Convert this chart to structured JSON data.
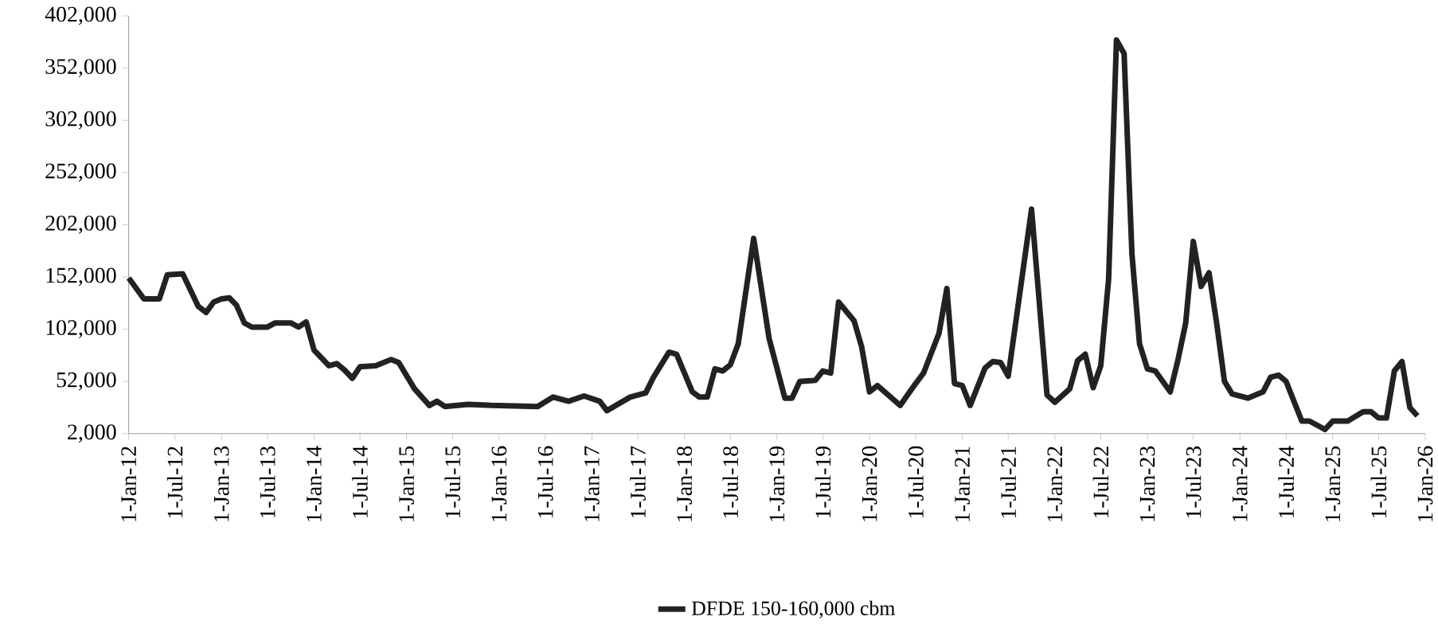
{
  "chart_data": {
    "type": "line",
    "x": [
      "2012-01-01",
      "2012-03-01",
      "2012-05-01",
      "2012-06-01",
      "2012-08-01",
      "2012-10-01",
      "2012-11-01",
      "2012-12-01",
      "2013-01-01",
      "2013-02-01",
      "2013-03-01",
      "2013-04-01",
      "2013-05-01",
      "2013-07-01",
      "2013-08-01",
      "2013-10-01",
      "2013-11-01",
      "2013-12-01",
      "2014-01-01",
      "2014-03-01",
      "2014-04-01",
      "2014-05-01",
      "2014-06-01",
      "2014-07-01",
      "2014-09-01",
      "2014-11-01",
      "2014-12-01",
      "2015-02-01",
      "2015-04-01",
      "2015-05-01",
      "2015-06-01",
      "2015-09-01",
      "2015-12-01",
      "2016-06-01",
      "2016-08-01",
      "2016-10-01",
      "2016-12-01",
      "2017-02-01",
      "2017-03-01",
      "2017-06-01",
      "2017-08-01",
      "2017-09-01",
      "2017-11-01",
      "2017-12-01",
      "2018-02-01",
      "2018-03-01",
      "2018-04-01",
      "2018-05-01",
      "2018-06-01",
      "2018-07-01",
      "2018-08-01",
      "2018-10-01",
      "2018-12-01",
      "2019-02-01",
      "2019-03-01",
      "2019-04-01",
      "2019-06-01",
      "2019-07-01",
      "2019-08-01",
      "2019-09-01",
      "2019-11-01",
      "2019-12-01",
      "2020-01-01",
      "2020-02-01",
      "2020-05-01",
      "2020-07-01",
      "2020-08-01",
      "2020-10-01",
      "2020-11-01",
      "2020-12-01",
      "2021-01-01",
      "2021-02-01",
      "2021-04-01",
      "2021-05-01",
      "2021-06-01",
      "2021-07-01",
      "2021-10-01",
      "2021-12-01",
      "2022-01-01",
      "2022-03-01",
      "2022-04-01",
      "2022-05-01",
      "2022-06-01",
      "2022-07-01",
      "2022-08-01",
      "2022-09-01",
      "2022-10-01",
      "2022-11-01",
      "2022-12-01",
      "2023-01-01",
      "2023-02-01",
      "2023-04-01",
      "2023-05-01",
      "2023-06-01",
      "2023-07-01",
      "2023-08-01",
      "2023-09-01",
      "2023-10-01",
      "2023-11-01",
      "2023-12-01",
      "2024-02-01",
      "2024-04-01",
      "2024-05-01",
      "2024-06-01",
      "2024-07-01",
      "2024-09-01",
      "2024-10-01",
      "2024-12-01",
      "2025-01-01",
      "2025-03-01",
      "2025-05-01",
      "2025-06-01",
      "2025-07-01",
      "2025-08-01",
      "2025-09-01",
      "2025-10-01",
      "2025-11-01",
      "2025-12-01"
    ],
    "series": [
      {
        "name": "DFDE 150-160,000 cbm",
        "color": "#222222",
        "values": [
          151000,
          131000,
          131000,
          154000,
          155000,
          124000,
          118000,
          128000,
          131000,
          132000,
          125000,
          108000,
          104000,
          104000,
          108000,
          108000,
          104000,
          109000,
          82000,
          67000,
          69000,
          63000,
          55000,
          66000,
          67000,
          73000,
          70000,
          45000,
          29000,
          33000,
          28000,
          30000,
          29000,
          28000,
          37000,
          33000,
          38000,
          33000,
          24000,
          37000,
          41000,
          56000,
          80000,
          78000,
          42000,
          37000,
          37000,
          64000,
          62000,
          68000,
          88000,
          189000,
          93000,
          36000,
          36000,
          52000,
          53000,
          62000,
          60000,
          128000,
          110000,
          85000,
          42000,
          48000,
          29000,
          50000,
          60000,
          98000,
          141000,
          50000,
          48000,
          29000,
          65000,
          71000,
          70000,
          57000,
          217000,
          39000,
          32000,
          45000,
          72000,
          78000,
          46000,
          67000,
          150000,
          379000,
          366000,
          174000,
          88000,
          64000,
          62000,
          42000,
          72000,
          108000,
          186000,
          143000,
          156000,
          108000,
          52000,
          40000,
          36000,
          42000,
          56000,
          58000,
          52000,
          14000,
          14000,
          6000,
          14000,
          14000,
          23000,
          23000,
          17000,
          17000,
          62000,
          71000,
          27000,
          19000
        ]
      }
    ],
    "xlim": [
      "2012-01-01",
      "2026-01-01"
    ],
    "xticks": [
      {
        "value": "2012-01-01",
        "label": "1-Jan-12"
      },
      {
        "value": "2012-07-01",
        "label": "1-Jul-12"
      },
      {
        "value": "2013-01-01",
        "label": "1-Jan-13"
      },
      {
        "value": "2013-07-01",
        "label": "1-Jul-13"
      },
      {
        "value": "2014-01-01",
        "label": "1-Jan-14"
      },
      {
        "value": "2014-07-01",
        "label": "1-Jul-14"
      },
      {
        "value": "2015-01-01",
        "label": "1-Jan-15"
      },
      {
        "value": "2015-07-01",
        "label": "1-Jul-15"
      },
      {
        "value": "2016-01-01",
        "label": "1-Jan-16"
      },
      {
        "value": "2016-07-01",
        "label": "1-Jul-16"
      },
      {
        "value": "2017-01-01",
        "label": "1-Jan-17"
      },
      {
        "value": "2017-07-01",
        "label": "1-Jul-17"
      },
      {
        "value": "2018-01-01",
        "label": "1-Jan-18"
      },
      {
        "value": "2018-07-01",
        "label": "1-Jul-18"
      },
      {
        "value": "2019-01-01",
        "label": "1-Jan-19"
      },
      {
        "value": "2019-07-01",
        "label": "1-Jul-19"
      },
      {
        "value": "2020-01-01",
        "label": "1-Jan-20"
      },
      {
        "value": "2020-07-01",
        "label": "1-Jul-20"
      },
      {
        "value": "2021-01-01",
        "label": "1-Jan-21"
      },
      {
        "value": "2021-07-01",
        "label": "1-Jul-21"
      },
      {
        "value": "2022-01-01",
        "label": "1-Jan-22"
      },
      {
        "value": "2022-07-01",
        "label": "1-Jul-22"
      },
      {
        "value": "2023-01-01",
        "label": "1-Jan-23"
      },
      {
        "value": "2023-07-01",
        "label": "1-Jul-23"
      },
      {
        "value": "2024-01-01",
        "label": "1-Jan-24"
      },
      {
        "value": "2024-07-01",
        "label": "1-Jul-24"
      },
      {
        "value": "2025-01-01",
        "label": "1-Jan-25"
      },
      {
        "value": "2025-07-01",
        "label": "1-Jul-25"
      },
      {
        "value": "2026-01-01",
        "label": "1-Jan-26"
      }
    ],
    "ylim": [
      2000,
      402000
    ],
    "yticks": [
      {
        "value": 2000,
        "label": "2,000"
      },
      {
        "value": 52000,
        "label": "52,000"
      },
      {
        "value": 102000,
        "label": "102,000"
      },
      {
        "value": 152000,
        "label": "152,000"
      },
      {
        "value": 202000,
        "label": "202,000"
      },
      {
        "value": 252000,
        "label": "252,000"
      },
      {
        "value": 302000,
        "label": "302,000"
      },
      {
        "value": 352000,
        "label": "352,000"
      },
      {
        "value": 402000,
        "label": "402,000"
      }
    ],
    "legend": "bottom",
    "marker": "none",
    "line_style": "solid",
    "grid": false
  }
}
